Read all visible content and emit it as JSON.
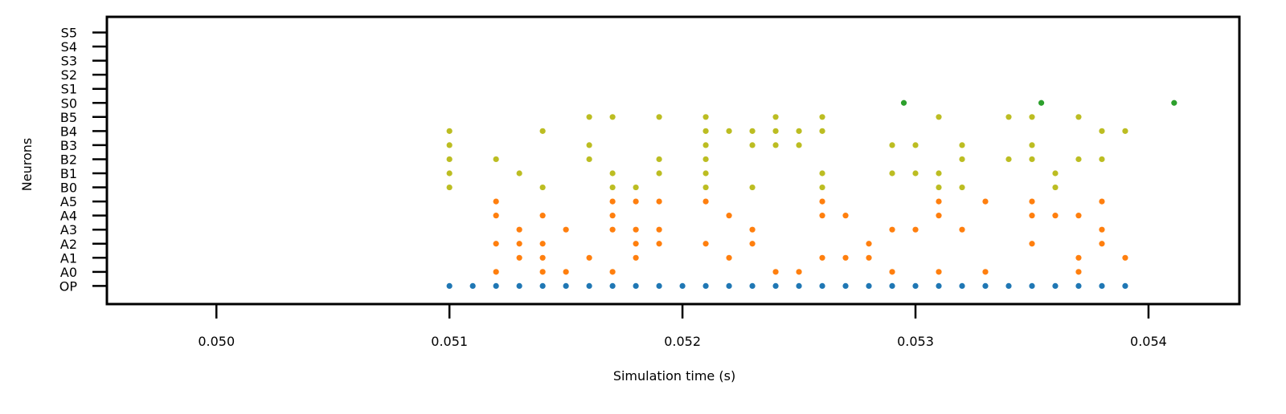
{
  "chart_data": {
    "type": "scatter",
    "title": "",
    "xlabel": "Simulation time (s)",
    "ylabel": "Neurons",
    "xlim": [
      0.04953,
      0.05439
    ],
    "x_ticks": [
      0.05,
      0.051,
      0.052,
      0.053,
      0.054
    ],
    "x_tick_labels": [
      "0.050",
      "0.051",
      "0.052",
      "0.053",
      "0.054"
    ],
    "y_categories": [
      "OP",
      "A0",
      "A1",
      "A2",
      "A3",
      "A4",
      "A5",
      "B0",
      "B1",
      "B2",
      "B3",
      "B4",
      "B5",
      "S0",
      "S1",
      "S2",
      "S3",
      "S4",
      "S5"
    ],
    "grid": false,
    "series": [
      {
        "color": "#1f77b4",
        "points": [
          [
            0.051,
            "OP"
          ],
          [
            0.0511,
            "OP"
          ],
          [
            0.0512,
            "OP"
          ],
          [
            0.0513,
            "OP"
          ],
          [
            0.0514,
            "OP"
          ],
          [
            0.0515,
            "OP"
          ],
          [
            0.0516,
            "OP"
          ],
          [
            0.0517,
            "OP"
          ],
          [
            0.0518,
            "OP"
          ],
          [
            0.0519,
            "OP"
          ],
          [
            0.052,
            "OP"
          ],
          [
            0.0521,
            "OP"
          ],
          [
            0.0522,
            "OP"
          ],
          [
            0.0523,
            "OP"
          ],
          [
            0.0524,
            "OP"
          ],
          [
            0.0525,
            "OP"
          ],
          [
            0.0526,
            "OP"
          ],
          [
            0.0527,
            "OP"
          ],
          [
            0.0528,
            "OP"
          ],
          [
            0.0529,
            "OP"
          ],
          [
            0.053,
            "OP"
          ],
          [
            0.0531,
            "OP"
          ],
          [
            0.0532,
            "OP"
          ],
          [
            0.0533,
            "OP"
          ],
          [
            0.0534,
            "OP"
          ],
          [
            0.0535,
            "OP"
          ],
          [
            0.0536,
            "OP"
          ],
          [
            0.0537,
            "OP"
          ],
          [
            0.0538,
            "OP"
          ],
          [
            0.0539,
            "OP"
          ]
        ]
      },
      {
        "color": "#ff7f0e",
        "points": [
          [
            0.0512,
            "A0"
          ],
          [
            0.0514,
            "A0"
          ],
          [
            0.0515,
            "A0"
          ],
          [
            0.0517,
            "A0"
          ],
          [
            0.0524,
            "A0"
          ],
          [
            0.0525,
            "A0"
          ],
          [
            0.0529,
            "A0"
          ],
          [
            0.0531,
            "A0"
          ],
          [
            0.0533,
            "A0"
          ],
          [
            0.0537,
            "A0"
          ],
          [
            0.0513,
            "A1"
          ],
          [
            0.0514,
            "A1"
          ],
          [
            0.0516,
            "A1"
          ],
          [
            0.0518,
            "A1"
          ],
          [
            0.0522,
            "A1"
          ],
          [
            0.0526,
            "A1"
          ],
          [
            0.0527,
            "A1"
          ],
          [
            0.0528,
            "A1"
          ],
          [
            0.0537,
            "A1"
          ],
          [
            0.0539,
            "A1"
          ],
          [
            0.0512,
            "A2"
          ],
          [
            0.0513,
            "A2"
          ],
          [
            0.0514,
            "A2"
          ],
          [
            0.0518,
            "A2"
          ],
          [
            0.0519,
            "A2"
          ],
          [
            0.0521,
            "A2"
          ],
          [
            0.0523,
            "A2"
          ],
          [
            0.0528,
            "A2"
          ],
          [
            0.0535,
            "A2"
          ],
          [
            0.0538,
            "A2"
          ],
          [
            0.0513,
            "A3"
          ],
          [
            0.0515,
            "A3"
          ],
          [
            0.0517,
            "A3"
          ],
          [
            0.0518,
            "A3"
          ],
          [
            0.0519,
            "A3"
          ],
          [
            0.0523,
            "A3"
          ],
          [
            0.0529,
            "A3"
          ],
          [
            0.053,
            "A3"
          ],
          [
            0.0532,
            "A3"
          ],
          [
            0.0538,
            "A3"
          ],
          [
            0.0512,
            "A4"
          ],
          [
            0.0514,
            "A4"
          ],
          [
            0.0517,
            "A4"
          ],
          [
            0.0522,
            "A4"
          ],
          [
            0.0526,
            "A4"
          ],
          [
            0.0527,
            "A4"
          ],
          [
            0.0531,
            "A4"
          ],
          [
            0.0535,
            "A4"
          ],
          [
            0.0536,
            "A4"
          ],
          [
            0.0537,
            "A4"
          ],
          [
            0.0512,
            "A5"
          ],
          [
            0.0517,
            "A5"
          ],
          [
            0.0518,
            "A5"
          ],
          [
            0.0519,
            "A5"
          ],
          [
            0.0521,
            "A5"
          ],
          [
            0.0526,
            "A5"
          ],
          [
            0.0531,
            "A5"
          ],
          [
            0.0533,
            "A5"
          ],
          [
            0.0535,
            "A5"
          ],
          [
            0.0538,
            "A5"
          ]
        ]
      },
      {
        "color": "#bcbd22",
        "points": [
          [
            0.051,
            "B0"
          ],
          [
            0.0514,
            "B0"
          ],
          [
            0.0517,
            "B0"
          ],
          [
            0.0518,
            "B0"
          ],
          [
            0.0521,
            "B0"
          ],
          [
            0.0523,
            "B0"
          ],
          [
            0.0526,
            "B0"
          ],
          [
            0.0531,
            "B0"
          ],
          [
            0.0532,
            "B0"
          ],
          [
            0.0536,
            "B0"
          ],
          [
            0.051,
            "B1"
          ],
          [
            0.0513,
            "B1"
          ],
          [
            0.0517,
            "B1"
          ],
          [
            0.0519,
            "B1"
          ],
          [
            0.0521,
            "B1"
          ],
          [
            0.0526,
            "B1"
          ],
          [
            0.0529,
            "B1"
          ],
          [
            0.053,
            "B1"
          ],
          [
            0.0531,
            "B1"
          ],
          [
            0.0536,
            "B1"
          ],
          [
            0.051,
            "B2"
          ],
          [
            0.0512,
            "B2"
          ],
          [
            0.0516,
            "B2"
          ],
          [
            0.0519,
            "B2"
          ],
          [
            0.0521,
            "B2"
          ],
          [
            0.0532,
            "B2"
          ],
          [
            0.0534,
            "B2"
          ],
          [
            0.0535,
            "B2"
          ],
          [
            0.0537,
            "B2"
          ],
          [
            0.0538,
            "B2"
          ],
          [
            0.051,
            "B3"
          ],
          [
            0.0516,
            "B3"
          ],
          [
            0.0521,
            "B3"
          ],
          [
            0.0523,
            "B3"
          ],
          [
            0.0524,
            "B3"
          ],
          [
            0.0525,
            "B3"
          ],
          [
            0.0529,
            "B3"
          ],
          [
            0.053,
            "B3"
          ],
          [
            0.0532,
            "B3"
          ],
          [
            0.0535,
            "B3"
          ],
          [
            0.051,
            "B4"
          ],
          [
            0.0514,
            "B4"
          ],
          [
            0.0521,
            "B4"
          ],
          [
            0.0522,
            "B4"
          ],
          [
            0.0523,
            "B4"
          ],
          [
            0.0524,
            "B4"
          ],
          [
            0.0525,
            "B4"
          ],
          [
            0.0526,
            "B4"
          ],
          [
            0.0538,
            "B4"
          ],
          [
            0.0539,
            "B4"
          ],
          [
            0.0516,
            "B5"
          ],
          [
            0.0517,
            "B5"
          ],
          [
            0.0519,
            "B5"
          ],
          [
            0.0521,
            "B5"
          ],
          [
            0.0524,
            "B5"
          ],
          [
            0.0526,
            "B5"
          ],
          [
            0.0531,
            "B5"
          ],
          [
            0.0534,
            "B5"
          ],
          [
            0.0535,
            "B5"
          ],
          [
            0.0537,
            "B5"
          ]
        ]
      },
      {
        "color": "#2ca02c",
        "points": [
          [
            0.05295,
            "S0"
          ],
          [
            0.05354,
            "S0"
          ],
          [
            0.05411,
            "S0"
          ]
        ]
      }
    ]
  }
}
